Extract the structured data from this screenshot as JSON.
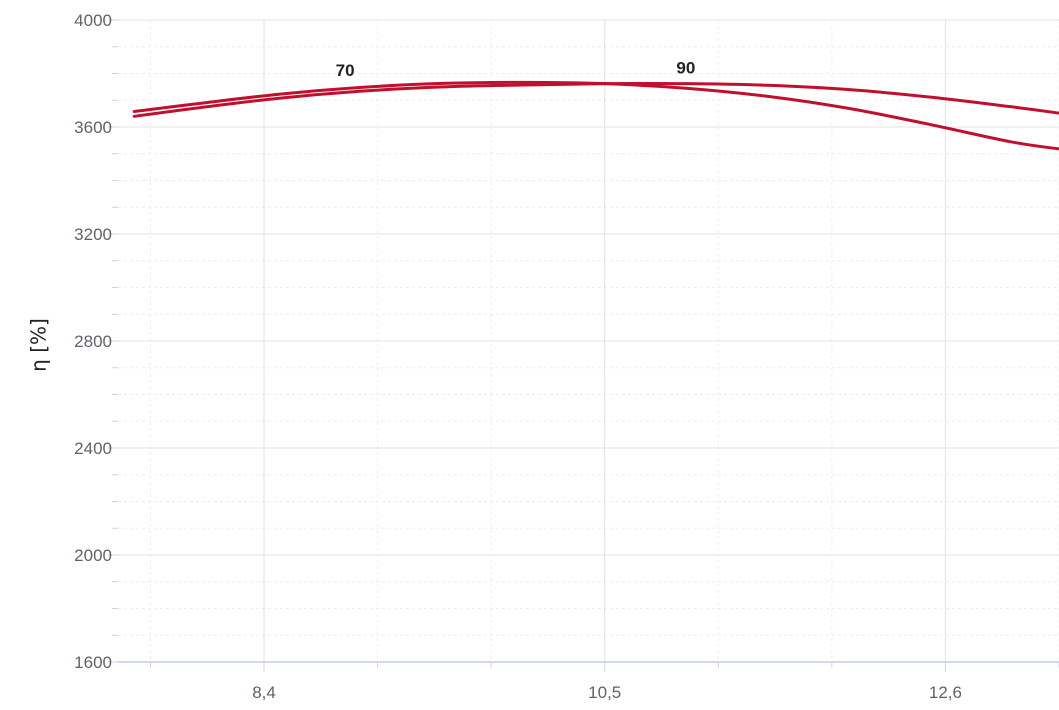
{
  "chart_data": {
    "type": "line",
    "xlabel": "",
    "ylabel": "η [%]",
    "xlim": [
      7.5,
      13.3
    ],
    "ylim": [
      1600,
      4000
    ],
    "x_ticks": [
      8.4,
      10.5,
      12.6
    ],
    "x_tick_labels": [
      "8,4",
      "10,5",
      "12,6"
    ],
    "y_ticks": [
      1600,
      2000,
      2400,
      2800,
      3200,
      3600,
      4000
    ],
    "y_tick_labels": [
      "1600",
      "2000",
      "2400",
      "2800",
      "3200",
      "3600",
      "4000"
    ],
    "grid": true,
    "line_color": "#c0102e",
    "series": [
      {
        "name": "70",
        "x": [
          7.6,
          8.0,
          8.5,
          9.0,
          9.5,
          10.0,
          10.5,
          11.0,
          11.5,
          12.0,
          12.5,
          13.0,
          13.3
        ],
        "y": [
          3658,
          3688,
          3723,
          3748,
          3763,
          3767,
          3762,
          3745,
          3715,
          3670,
          3610,
          3545,
          3518
        ]
      },
      {
        "name": "90",
        "x": [
          7.6,
          8.0,
          8.5,
          9.0,
          9.5,
          10.0,
          10.5,
          11.0,
          11.5,
          12.0,
          12.5,
          13.0,
          13.3
        ],
        "y": [
          3640,
          3672,
          3708,
          3734,
          3750,
          3757,
          3762,
          3762,
          3756,
          3740,
          3712,
          3676,
          3652
        ]
      }
    ],
    "annotations": [
      {
        "text": "70",
        "x": 8.9,
        "y": 3790
      },
      {
        "text": "90",
        "x": 11.0,
        "y": 3800
      }
    ]
  }
}
